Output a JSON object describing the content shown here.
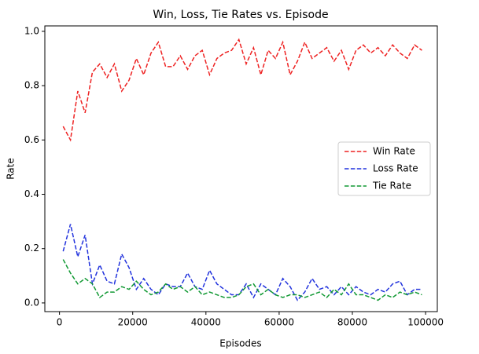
{
  "chart_data": {
    "type": "line",
    "title": "Win, Loss, Tie Rates vs. Episode",
    "xlabel": "Episodes",
    "ylabel": "Rate",
    "x": [
      1000,
      3000,
      5000,
      7000,
      9000,
      11000,
      13000,
      15000,
      17000,
      19000,
      21000,
      23000,
      25000,
      27000,
      29000,
      31000,
      33000,
      35000,
      37000,
      39000,
      41000,
      43000,
      45000,
      47000,
      49000,
      51000,
      53000,
      55000,
      57000,
      59000,
      61000,
      63000,
      65000,
      67000,
      69000,
      71000,
      73000,
      75000,
      77000,
      79000,
      81000,
      83000,
      85000,
      87000,
      89000,
      91000,
      93000,
      95000,
      97000,
      99000
    ],
    "series": [
      {
        "name": "Win Rate",
        "color": "#ee2222",
        "values": [
          0.65,
          0.6,
          0.78,
          0.7,
          0.85,
          0.88,
          0.83,
          0.88,
          0.78,
          0.82,
          0.9,
          0.84,
          0.92,
          0.96,
          0.87,
          0.87,
          0.91,
          0.86,
          0.91,
          0.93,
          0.84,
          0.9,
          0.92,
          0.93,
          0.97,
          0.88,
          0.94,
          0.84,
          0.93,
          0.9,
          0.96,
          0.84,
          0.89,
          0.96,
          0.9,
          0.92,
          0.94,
          0.89,
          0.93,
          0.86,
          0.93,
          0.95,
          0.92,
          0.94,
          0.91,
          0.95,
          0.92,
          0.9,
          0.95,
          0.93
        ]
      },
      {
        "name": "Loss Rate",
        "color": "#2233dd",
        "values": [
          0.19,
          0.29,
          0.17,
          0.25,
          0.07,
          0.14,
          0.08,
          0.07,
          0.18,
          0.13,
          0.05,
          0.09,
          0.05,
          0.03,
          0.07,
          0.06,
          0.06,
          0.11,
          0.06,
          0.05,
          0.12,
          0.07,
          0.05,
          0.03,
          0.03,
          0.07,
          0.02,
          0.07,
          0.05,
          0.03,
          0.09,
          0.06,
          0.01,
          0.04,
          0.09,
          0.05,
          0.06,
          0.03,
          0.06,
          0.03,
          0.06,
          0.04,
          0.03,
          0.05,
          0.04,
          0.07,
          0.08,
          0.03,
          0.05,
          0.05
        ]
      },
      {
        "name": "Tie Rate",
        "color": "#119933",
        "values": [
          0.16,
          0.11,
          0.07,
          0.09,
          0.07,
          0.02,
          0.04,
          0.04,
          0.06,
          0.05,
          0.08,
          0.05,
          0.03,
          0.04,
          0.07,
          0.05,
          0.06,
          0.04,
          0.06,
          0.03,
          0.04,
          0.03,
          0.02,
          0.02,
          0.03,
          0.06,
          0.07,
          0.03,
          0.05,
          0.03,
          0.02,
          0.03,
          0.03,
          0.02,
          0.03,
          0.04,
          0.02,
          0.05,
          0.03,
          0.07,
          0.03,
          0.03,
          0.02,
          0.01,
          0.03,
          0.02,
          0.04,
          0.03,
          0.04,
          0.03
        ]
      }
    ],
    "xlim": [
      -4000,
      103200
    ],
    "ylim": [
      -0.032,
      1.02
    ],
    "xticks": [
      0,
      20000,
      40000,
      60000,
      80000,
      100000
    ],
    "yticks": [
      {
        "value": 0,
        "label": "0.0"
      },
      0.2,
      0.4,
      0.6,
      0.8,
      {
        "value": 1,
        "label": "1.0"
      }
    ],
    "line_style": "dashed",
    "legend": "center right"
  }
}
